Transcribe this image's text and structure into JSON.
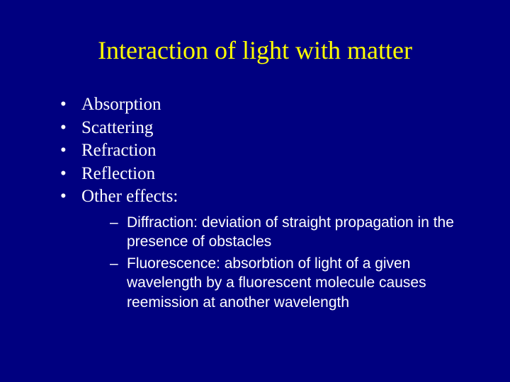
{
  "slide": {
    "title": "Interaction of light with matter",
    "background_color": "#000080",
    "title_color": "#ffff00",
    "text_color": "#ffffff",
    "title_font": "Times New Roman",
    "body_font": "Times New Roman",
    "sub_font": "Arial",
    "title_fontsize": 36,
    "body_fontsize": 25,
    "sub_fontsize": 21,
    "bullets": [
      {
        "text": "Absorption"
      },
      {
        "text": "Scattering"
      },
      {
        "text": "Refraction"
      },
      {
        "text": "Reflection"
      },
      {
        "text": "Other effects:"
      }
    ],
    "sub_bullets": [
      {
        "text": "Diffraction: deviation of straight propagation in the presence of obstacles"
      },
      {
        "text": "Fluorescence: absorbtion of light of a given wavelength by a fluorescent molecule causes reemission at another wavelength"
      }
    ]
  }
}
